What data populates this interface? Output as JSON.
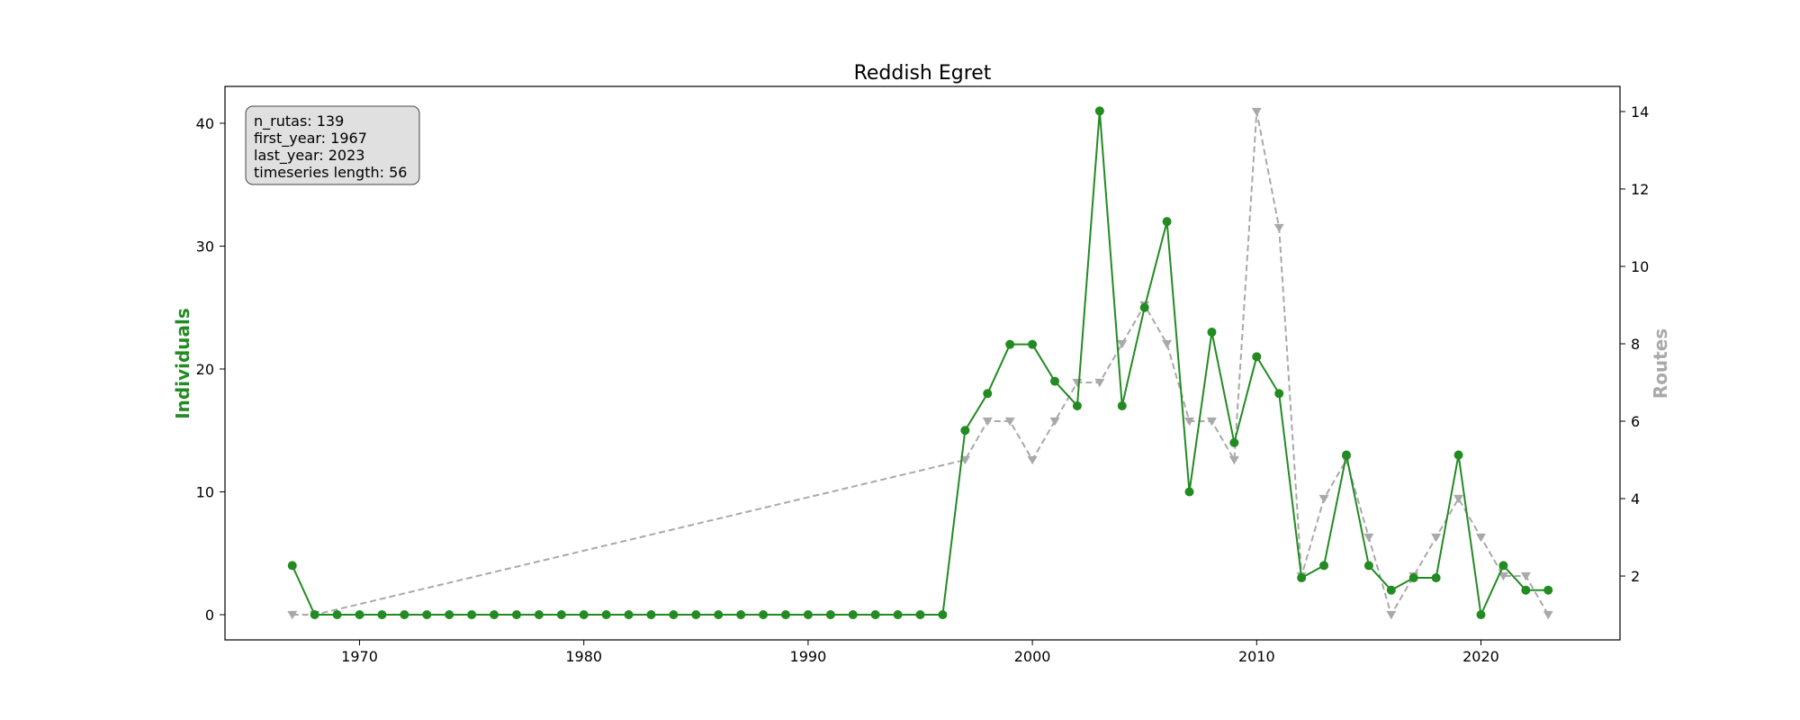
{
  "chart_data": {
    "type": "line",
    "title": "Reddish Egret",
    "xlabel": "",
    "ylabel_left": "Individuals",
    "ylabel_right": "Routes",
    "xlim": [
      1964,
      2026.2
    ],
    "ylim_left": [
      -2.05,
      43.0
    ],
    "ylim_right": [
      0.35,
      14.65
    ],
    "x_ticks": [
      1970,
      1980,
      1990,
      2000,
      2010,
      2020
    ],
    "y_ticks_left": [
      0,
      10,
      20,
      30,
      40
    ],
    "y_ticks_right": [
      2,
      4,
      6,
      8,
      10,
      12,
      14
    ],
    "grid": false,
    "colors": {
      "individuals": "#228b22",
      "routes": "#a9a9a9"
    },
    "info_box": [
      "n_rutas: 139",
      "first_year: 1967",
      "last_year: 2023",
      "timeseries length: 56"
    ],
    "series": [
      {
        "name": "Individuals",
        "axis": "left",
        "style": "solid-circle",
        "x": [
          1967,
          1968,
          1969,
          1970,
          1971,
          1972,
          1973,
          1974,
          1975,
          1976,
          1977,
          1978,
          1979,
          1980,
          1981,
          1982,
          1983,
          1984,
          1985,
          1986,
          1987,
          1988,
          1989,
          1990,
          1991,
          1992,
          1993,
          1994,
          1995,
          1996,
          1997,
          1998,
          1999,
          2000,
          2001,
          2002,
          2003,
          2004,
          2005,
          2006,
          2007,
          2008,
          2009,
          2010,
          2011,
          2012,
          2013,
          2014,
          2015,
          2016,
          2017,
          2018,
          2019,
          2020,
          2021,
          2022,
          2023
        ],
        "y": [
          4,
          0,
          0,
          0,
          0,
          0,
          0,
          0,
          0,
          0,
          0,
          0,
          0,
          0,
          0,
          0,
          0,
          0,
          0,
          0,
          0,
          0,
          0,
          0,
          0,
          0,
          0,
          0,
          0,
          0,
          15,
          18,
          22,
          22,
          19,
          17,
          41,
          17,
          25,
          32,
          10,
          23,
          14,
          21,
          18,
          3,
          4,
          13,
          4,
          2,
          3,
          3,
          13,
          0,
          4,
          2,
          2
        ]
      },
      {
        "name": "Routes",
        "axis": "right",
        "style": "dashed-triangle",
        "x": [
          1967,
          1968,
          1997,
          1998,
          1999,
          2000,
          2001,
          2002,
          2003,
          2004,
          2005,
          2006,
          2007,
          2008,
          2009,
          2010,
          2011,
          2012,
          2013,
          2014,
          2015,
          2016,
          2017,
          2018,
          2019,
          2020,
          2021,
          2022,
          2023
        ],
        "y": [
          1,
          1,
          5,
          6,
          6,
          5,
          6,
          7,
          7,
          8,
          9,
          8,
          6,
          6,
          5,
          14,
          11,
          2,
          4,
          5,
          3,
          1,
          2,
          3,
          4,
          3,
          2,
          2,
          1
        ]
      }
    ]
  }
}
